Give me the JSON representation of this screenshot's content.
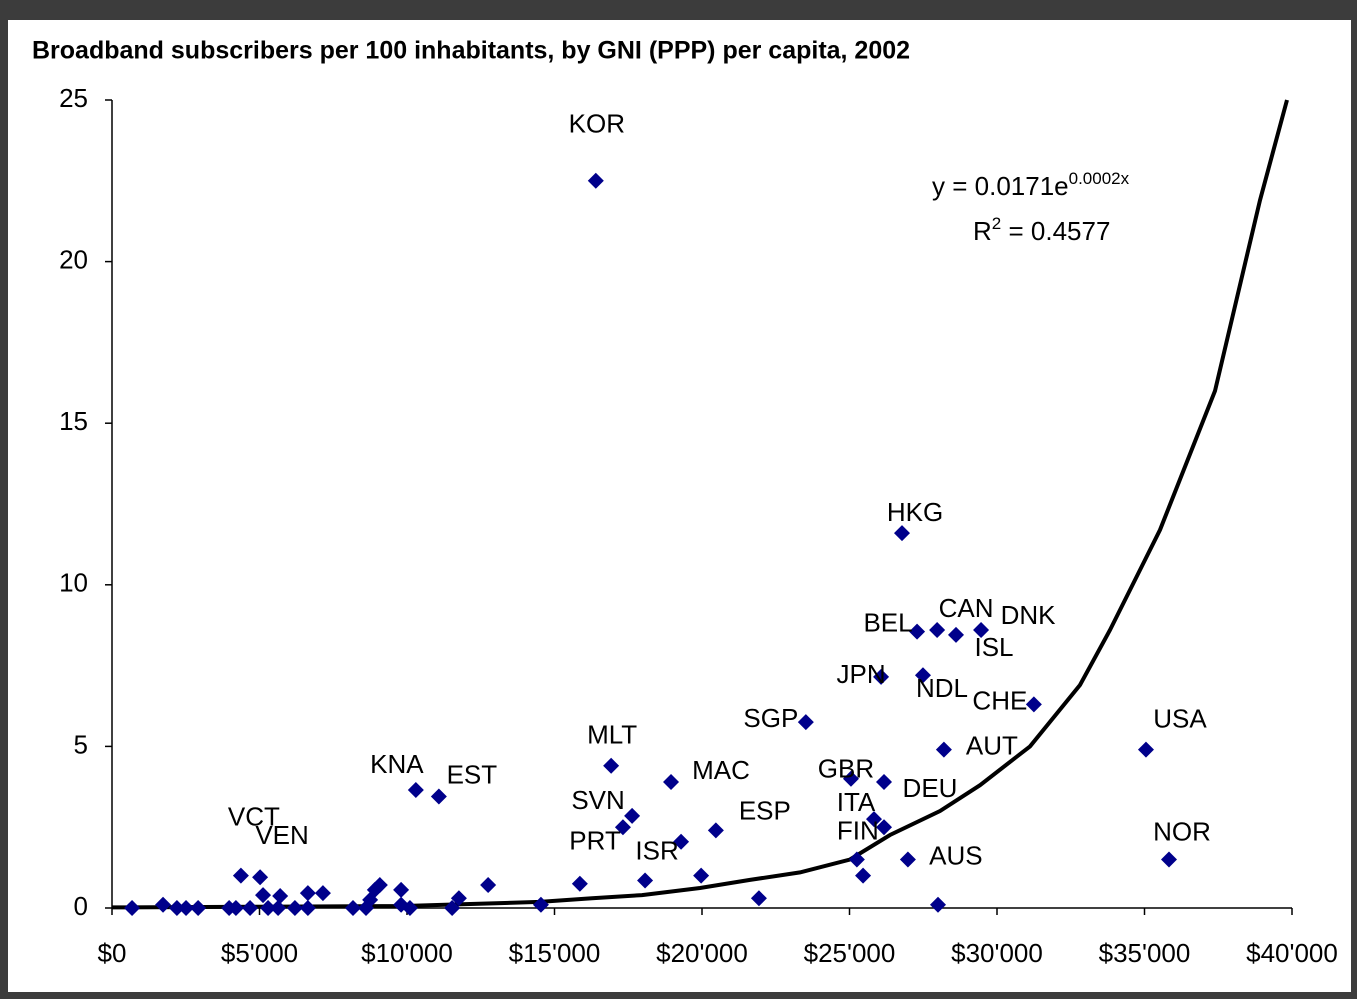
{
  "chart_data": {
    "type": "scatter",
    "title": "Broadband subscribers per 100 inhabitants, by GNI (PPP) per capita, 2002",
    "color": "#00008b",
    "xlim": [
      0,
      40000
    ],
    "ylim": [
      0,
      25
    ],
    "xticks": [
      {
        "value": 0,
        "label": "$0"
      },
      {
        "value": 5000,
        "label": "$5'000"
      },
      {
        "value": 10000,
        "label": "$10'000"
      },
      {
        "value": 15000,
        "label": "$15'000"
      },
      {
        "value": 20000,
        "label": "$20'000"
      },
      {
        "value": 25000,
        "label": "$25'000"
      },
      {
        "value": 30000,
        "label": "$30'000"
      },
      {
        "value": 35000,
        "label": "$35'000"
      },
      {
        "value": 40000,
        "label": "$40'000"
      }
    ],
    "yticks": [
      0,
      5,
      10,
      15,
      20,
      25
    ],
    "grid": false,
    "series": [
      {
        "x": [
          16400,
          26780,
          27290,
          27970,
          28610,
          29460,
          26070,
          27490,
          31250,
          23520,
          28200,
          35050,
          16920,
          18950,
          25050,
          26170,
          10300,
          11080,
          17630,
          17320,
          25830,
          26170,
          20470,
          19290,
          18070,
          25250,
          25460,
          26980,
          35830,
          28000,
          4370,
          5020,
          15860,
          14540,
          21930,
          19970,
          680,
          1730,
          2200,
          2510,
          2920,
          3970,
          4200,
          4680,
          5120,
          5290,
          5700,
          5630,
          6200,
          6640,
          6640,
          7150,
          8170,
          8610,
          8750,
          8910,
          9080,
          9800,
          9800,
          10100,
          11530,
          11760,
          12750
        ],
        "values": [
          22.5,
          11.6,
          8.55,
          8.6,
          8.45,
          8.6,
          7.15,
          7.2,
          6.3,
          5.75,
          4.9,
          4.9,
          4.4,
          3.9,
          4.0,
          3.9,
          3.65,
          3.45,
          2.85,
          2.5,
          2.75,
          2.5,
          2.4,
          2.05,
          0.85,
          1.5,
          1.0,
          1.5,
          1.5,
          0.1,
          1.0,
          0.95,
          0.75,
          0.1,
          0.3,
          1.0,
          0,
          0.1,
          0,
          0,
          0,
          0,
          0,
          0,
          0.4,
          0,
          0.37,
          0,
          0,
          0.46,
          0,
          0.46,
          0,
          0,
          0.25,
          0.56,
          0.71,
          0.56,
          0.1,
          0,
          0,
          0.3,
          0.71
        ],
        "labels": [
          "KOR",
          "HKG",
          "BEL",
          "CAN",
          "ISL",
          "DNK",
          "JPN",
          "NDL",
          "CHE",
          "SGP",
          "AUT",
          "USA",
          "MLT",
          "MAC",
          "GBR",
          "DEU",
          "KNA",
          "EST",
          "SVN",
          null,
          "ITA",
          null,
          "ESP",
          "ISR",
          "PRT",
          "FIN",
          null,
          "AUS",
          "NOR",
          null,
          "VCT",
          "VEN",
          null,
          null,
          null,
          null,
          null,
          null,
          null,
          null,
          null,
          null,
          null,
          null,
          null,
          null,
          null,
          null,
          null,
          null,
          null,
          null,
          null,
          null,
          null,
          null,
          null,
          null,
          null,
          null,
          null,
          null,
          null
        ]
      }
    ],
    "trendline": {
      "x": [
        0,
        9763,
        12000,
        14500,
        16271,
        17966,
        19932,
        21627,
        23322,
        25017,
        26373,
        28068,
        29424,
        31119,
        32814,
        33830,
        35525,
        37390,
        38915,
        39830
      ],
      "values": [
        0.02,
        0.06,
        0.12,
        0.19,
        0.3,
        0.4,
        0.62,
        0.87,
        1.1,
        1.5,
        2.26,
        3.0,
        3.8,
        5.0,
        6.9,
        8.6,
        11.7,
        16.0,
        21.9,
        25
      ],
      "color": "#000000",
      "equation": {
        "base": "y = 0.0171e",
        "exponent": "0.0002x"
      },
      "r_squared": {
        "base": "R",
        "exponent": "2",
        "rest": " = 0.4577"
      }
    }
  }
}
